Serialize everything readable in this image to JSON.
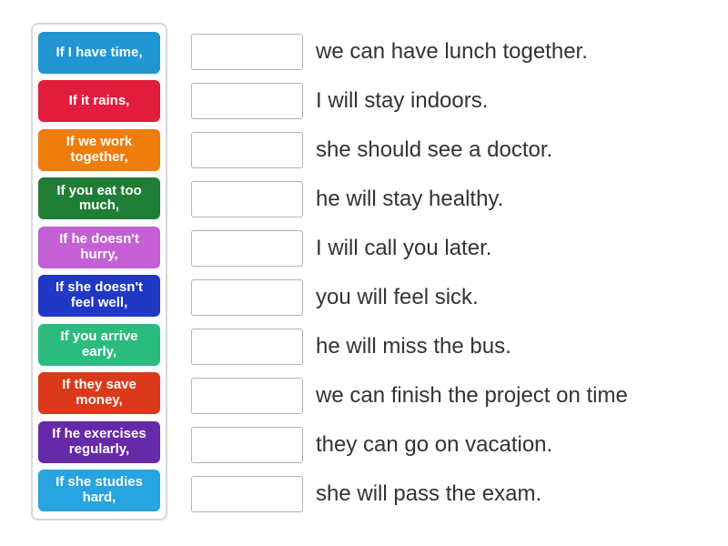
{
  "activity_type": "match-up",
  "colors": {
    "page_background": "#ffffff",
    "panel_border": "#d8d8d8",
    "slot_border": "#b3b3b3",
    "answer_text": "#333333",
    "tile_text": "#ffffff"
  },
  "tiles": [
    {
      "label": "If I have time,",
      "color": "#2196d2"
    },
    {
      "label": "If it rains,",
      "color": "#e21c3c"
    },
    {
      "label": "If we work together,",
      "color": "#ef7d0c"
    },
    {
      "label": "If you eat too much,",
      "color": "#1f7d35"
    },
    {
      "label": "If he doesn't hurry,",
      "color": "#c45fd5"
    },
    {
      "label": "If she doesn't feel well,",
      "color": "#2038c4"
    },
    {
      "label": "If you arrive early,",
      "color": "#2cbb7e"
    },
    {
      "label": "If they save money,",
      "color": "#da391c"
    },
    {
      "label": "If he exercises regularly,",
      "color": "#6629a8"
    },
    {
      "label": "If she studies hard,",
      "color": "#27a3df"
    }
  ],
  "answers": [
    "we can have lunch together.",
    "I will stay indoors.",
    "she should see a doctor.",
    "he will stay healthy.",
    "I will call you later.",
    "you will feel sick.",
    "he will miss the bus.",
    "we can finish the project on time",
    "they can go on vacation.",
    "she will pass the exam."
  ]
}
